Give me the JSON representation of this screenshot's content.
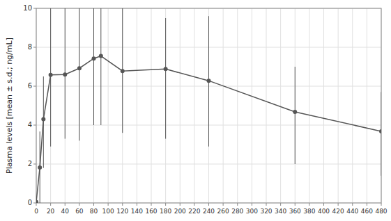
{
  "chart_data": {
    "type": "line",
    "ylabel": "Plasma levels [mean ± s.d.; ng/mL]",
    "x": [
      0,
      5,
      10,
      20,
      40,
      60,
      80,
      90,
      120,
      180,
      240,
      360,
      480
    ],
    "values": [
      0.05,
      1.82,
      4.3,
      6.58,
      6.6,
      6.92,
      7.42,
      7.55,
      6.78,
      6.88,
      6.28,
      4.68,
      3.68
    ],
    "yerr_low": [
      0.05,
      1.82,
      2.5,
      3.68,
      3.3,
      3.72,
      3.42,
      3.55,
      3.18,
      3.58,
      3.38,
      2.68,
      2.28
    ],
    "yerr_high": [
      0.05,
      1.85,
      2.2,
      3.42,
      3.4,
      3.08,
      2.58,
      2.45,
      3.22,
      2.62,
      3.32,
      2.32,
      2.02
    ],
    "xlim": [
      0,
      480
    ],
    "ylim": [
      0,
      10
    ],
    "xticks": [
      0,
      20,
      40,
      60,
      80,
      100,
      120,
      140,
      160,
      180,
      200,
      220,
      240,
      260,
      280,
      300,
      320,
      340,
      360,
      380,
      400,
      420,
      440,
      460,
      480
    ],
    "yticks": [
      0,
      2,
      4,
      6,
      8,
      10
    ],
    "grid": true,
    "color": "#555555",
    "marker": "circle",
    "line_style": "solid"
  }
}
